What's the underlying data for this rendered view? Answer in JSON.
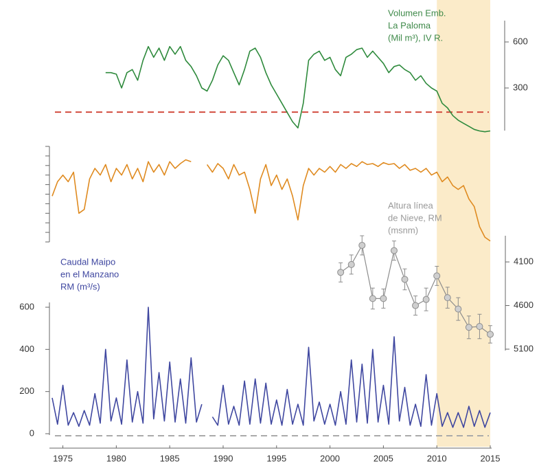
{
  "highlight_x": [
    2010,
    2015
  ],
  "highlight_color": "#fbebc9",
  "chart_data": [
    {
      "type": "line",
      "title": [
        "Volumen Emb.",
        "La Paloma",
        "(Mil m³), IV R."
      ],
      "title_color": "#3f8a4a",
      "xlim": [
        1974,
        2015
      ],
      "ylim": [
        0,
        700
      ],
      "yticks": [
        300,
        600
      ],
      "axis_side": "right",
      "reference_line": 143,
      "reference_color": "#d24b3e",
      "series": [
        {
          "color": "#2e8a3c",
          "x": [
            1979,
            1979.5,
            1980,
            1980.5,
            1981,
            1981.5,
            1982,
            1982.5,
            1983,
            1983.5,
            1984,
            1984.5,
            1985,
            1985.5,
            1986,
            1986.5,
            1987,
            1987.5,
            1988,
            1988.5,
            1989,
            1989.5,
            1990,
            1990.5,
            1991,
            1991.5,
            1992,
            1992.5,
            1993,
            1993.5,
            1994,
            1994.5,
            1995,
            1995.5,
            1996,
            1996.5,
            1997,
            1997.5,
            1998,
            1998.5,
            1999,
            1999.5,
            2000,
            2000.5,
            2001,
            2001.5,
            2002,
            2002.5,
            2003,
            2003.5,
            2004,
            2004.5,
            2005,
            2005.5,
            2006,
            2006.5,
            2007,
            2007.5,
            2008,
            2008.5,
            2009,
            2009.5,
            2010,
            2010.5,
            2011,
            2011.5,
            2012,
            2012.5,
            2013,
            2013.5,
            2014,
            2014.5,
            2015
          ],
          "values": [
            400,
            400,
            390,
            300,
            400,
            420,
            350,
            480,
            570,
            500,
            560,
            480,
            570,
            520,
            570,
            480,
            440,
            380,
            300,
            280,
            350,
            450,
            510,
            480,
            400,
            320,
            420,
            540,
            560,
            500,
            400,
            320,
            260,
            200,
            140,
            80,
            40,
            200,
            480,
            520,
            540,
            480,
            500,
            420,
            380,
            500,
            520,
            550,
            560,
            500,
            540,
            500,
            460,
            400,
            440,
            450,
            420,
            400,
            350,
            380,
            330,
            300,
            280,
            200,
            170,
            120,
            90,
            70,
            50,
            30,
            20,
            15,
            20
          ]
        }
      ]
    },
    {
      "type": "line",
      "xlim": [
        1974,
        2015
      ],
      "ylim": [
        0,
        10
      ],
      "yticks": [
        0,
        1,
        2,
        3,
        4,
        5,
        6,
        7,
        8,
        9,
        10
      ],
      "tick_labels_shown": false,
      "axis_side": "left",
      "series": [
        {
          "color": "#df8a1f",
          "x": [
            1974,
            1974.5,
            1975,
            1975.5,
            1976,
            1976.5,
            1977,
            1977.5,
            1978,
            1978.5,
            1979,
            1979.5,
            1980,
            1980.5,
            1981,
            1981.5,
            1982,
            1982.5,
            1983,
            1983.5,
            1984,
            1984.5,
            1985,
            1985.5,
            1986,
            1986.5,
            1987,
            1987.5,
            1988,
            1988.5,
            1989,
            1989.5,
            1990,
            1990.5,
            1991,
            1991.5,
            1992,
            1992.5,
            1993,
            1993.5,
            1994,
            1994.5,
            1995,
            1995.5,
            1996,
            1996.5,
            1997,
            1997.5,
            1998,
            1998.5,
            1999,
            1999.5,
            2000,
            2000.5,
            2001,
            2001.5,
            2002,
            2002.5,
            2003,
            2003.5,
            2004,
            2004.5,
            2005,
            2005.5,
            2006,
            2006.5,
            2007,
            2007.5,
            2008,
            2008.5,
            2009,
            2009.5,
            2010,
            2010.5,
            2011,
            2011.5,
            2012,
            2012.5,
            2013,
            2013.5,
            2014,
            2014.5,
            2015
          ],
          "values": [
            4.8,
            6.3,
            7.0,
            6.3,
            7.3,
            3.0,
            3.4,
            6.6,
            7.7,
            7.0,
            8.1,
            6.3,
            7.7,
            7.0,
            8.1,
            6.6,
            7.7,
            6.3,
            8.4,
            7.3,
            8.1,
            7.0,
            8.4,
            7.7,
            8.2,
            8.6,
            8.4,
            null,
            null,
            8.1,
            7.3,
            8.2,
            7.7,
            6.6,
            8.1,
            7.0,
            7.3,
            5.5,
            3.0,
            6.6,
            8.1,
            5.9,
            7.0,
            5.5,
            6.6,
            4.8,
            2.3,
            5.9,
            7.7,
            7.0,
            7.7,
            7.3,
            7.9,
            7.3,
            8.1,
            7.7,
            8.2,
            7.9,
            8.4,
            8.1,
            8.2,
            7.9,
            8.3,
            8.1,
            8.2,
            7.7,
            8.1,
            7.5,
            7.7,
            7.3,
            7.7,
            7.0,
            7.3,
            6.3,
            6.8,
            5.9,
            5.5,
            5.9,
            4.5,
            3.7,
            1.6,
            0.5,
            0.1
          ]
        }
      ]
    },
    {
      "type": "errorbar",
      "title": [
        "Altura línea",
        "de Nieve, RM",
        "(msnm)"
      ],
      "title_color": "#9a9a9a",
      "xlim": [
        1974,
        2015
      ],
      "ylim": [
        3800,
        5100
      ],
      "y_inverted": true,
      "yticks": [
        4100,
        4600,
        5100
      ],
      "axis_side": "right",
      "series": [
        {
          "color": "#8c8c8c",
          "marker_color": "#cfcfcf",
          "x": [
            2001,
            2002,
            2003,
            2004,
            2005,
            2006,
            2007,
            2008,
            2009,
            2010,
            2011,
            2012,
            2013,
            2014,
            2015
          ],
          "values": [
            4220,
            4130,
            3910,
            4520,
            4520,
            3970,
            4300,
            4600,
            4530,
            4260,
            4510,
            4640,
            4850,
            4840,
            4930
          ],
          "errors": [
            110,
            110,
            110,
            120,
            110,
            110,
            120,
            110,
            130,
            110,
            120,
            130,
            130,
            140,
            100
          ]
        }
      ]
    },
    {
      "type": "line",
      "title": [
        "Caudal Maipo",
        "en el Manzano",
        "RM (m³/s)"
      ],
      "title_color": "#3f47a0",
      "xlim": [
        1974,
        2015
      ],
      "ylim": [
        0,
        600
      ],
      "yticks": [
        0,
        200,
        400,
        600
      ],
      "axis_side": "left",
      "reference_line": 0,
      "reference_color": "#aaaaaa",
      "xticks": [
        1975,
        1980,
        1985,
        1990,
        1995,
        2000,
        2005,
        2010,
        2015
      ],
      "series": [
        {
          "color": "#3f47a0",
          "x": [
            1974,
            1974.5,
            1975,
            1975.5,
            1976,
            1976.5,
            1977,
            1977.5,
            1978,
            1978.5,
            1979,
            1979.5,
            1980,
            1980.5,
            1981,
            1981.5,
            1982,
            1982.5,
            1983,
            1983.5,
            1984,
            1984.5,
            1985,
            1985.5,
            1986,
            1986.5,
            1987,
            1987.5,
            1988,
            1988.5,
            1989,
            1989.5,
            1990,
            1990.5,
            1991,
            1991.5,
            1992,
            1992.5,
            1993,
            1993.5,
            1994,
            1994.5,
            1995,
            1995.5,
            1996,
            1996.5,
            1997,
            1997.5,
            1998,
            1998.5,
            1999,
            1999.5,
            2000,
            2000.5,
            2001,
            2001.5,
            2002,
            2002.5,
            2003,
            2003.5,
            2004,
            2004.5,
            2005,
            2005.5,
            2006,
            2006.5,
            2007,
            2007.5,
            2008,
            2008.5,
            2009,
            2009.5,
            2010,
            2010.5,
            2011,
            2011.5,
            2012,
            2012.5,
            2013,
            2013.5,
            2014,
            2014.5,
            2015
          ],
          "values": [
            170,
            45,
            230,
            40,
            100,
            35,
            110,
            40,
            190,
            50,
            400,
            60,
            170,
            45,
            350,
            55,
            200,
            50,
            600,
            70,
            290,
            60,
            340,
            55,
            260,
            50,
            360,
            55,
            140,
            null,
            80,
            40,
            230,
            45,
            130,
            40,
            250,
            45,
            260,
            50,
            240,
            45,
            160,
            40,
            210,
            45,
            140,
            40,
            410,
            60,
            150,
            45,
            140,
            40,
            200,
            45,
            350,
            55,
            330,
            50,
            400,
            55,
            230,
            45,
            460,
            60,
            220,
            40,
            140,
            35,
            280,
            40,
            190,
            35,
            100,
            30,
            100,
            30,
            130,
            35,
            110,
            30,
            100
          ]
        }
      ]
    }
  ]
}
